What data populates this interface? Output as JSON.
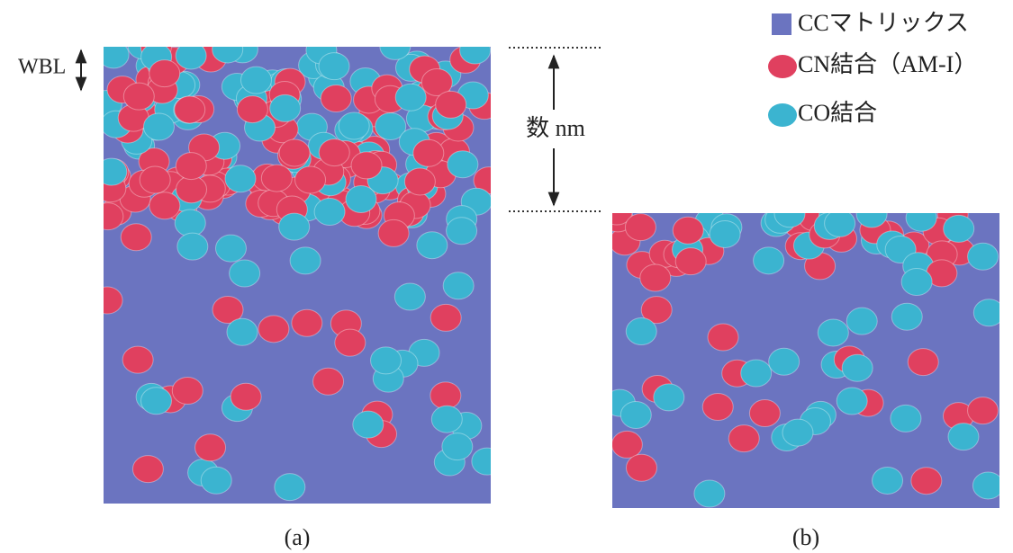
{
  "legend": [
    {
      "label": "CCマトリックス"
    },
    {
      "label": "CN結合（AM-I）"
    },
    {
      "label": "CO結合"
    }
  ],
  "annotations": {
    "wbl": "WBL",
    "thickness": "数 nm"
  },
  "panels": [
    {
      "label": "(a)"
    },
    {
      "label": "(b)"
    }
  ]
}
